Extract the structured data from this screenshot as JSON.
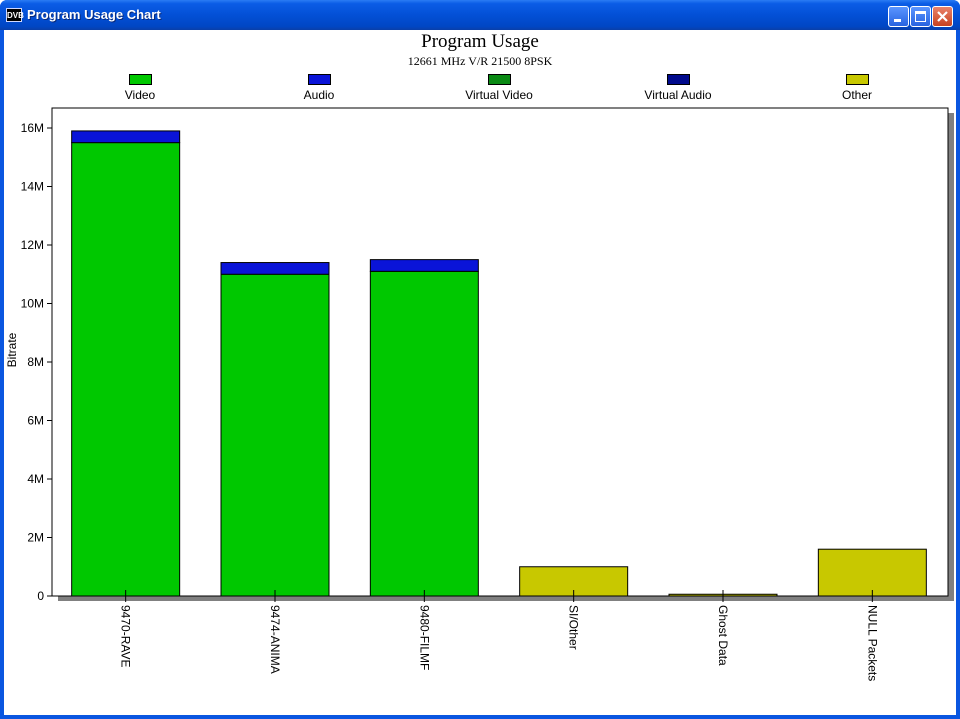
{
  "window": {
    "title": "Program Usage Chart",
    "icon_text": "DVB",
    "buttons": [
      "minimize",
      "maximize",
      "close"
    ]
  },
  "colors": {
    "video": "#00c800",
    "audio": "#0a14d8",
    "virtual_video": "#0a8a14",
    "virtual_audio": "#000a8c",
    "other": "#c8c800"
  },
  "chart_data": {
    "type": "bar",
    "stacked": true,
    "title": "Program Usage",
    "subtitle": "12661 MHz V/R 21500 8PSK",
    "xlabel": "",
    "ylabel": "Bitrate",
    "ylim": [
      0,
      16000000
    ],
    "yticks": [
      {
        "value": 0,
        "label": "0"
      },
      {
        "value": 2000000,
        "label": "2M"
      },
      {
        "value": 4000000,
        "label": "4M"
      },
      {
        "value": 6000000,
        "label": "6M"
      },
      {
        "value": 8000000,
        "label": "8M"
      },
      {
        "value": 10000000,
        "label": "10M"
      },
      {
        "value": 12000000,
        "label": "12M"
      },
      {
        "value": 14000000,
        "label": "14M"
      },
      {
        "value": 16000000,
        "label": "16M"
      }
    ],
    "legend_position": "top",
    "grid": false,
    "categories": [
      "9470-RAVE",
      "9474-ANIMA",
      "9480-FILMF",
      "SI/Other",
      "Ghost Data",
      "NULL Packets"
    ],
    "series": [
      {
        "name": "Video",
        "color_key": "video",
        "values": [
          15500000,
          11000000,
          11100000,
          0,
          0,
          0
        ]
      },
      {
        "name": "Audio",
        "color_key": "audio",
        "values": [
          400000,
          400000,
          400000,
          0,
          0,
          0
        ]
      },
      {
        "name": "Virtual Video",
        "color_key": "virtual_video",
        "values": [
          0,
          0,
          0,
          0,
          0,
          0
        ]
      },
      {
        "name": "Virtual Audio",
        "color_key": "virtual_audio",
        "values": [
          0,
          0,
          0,
          0,
          0,
          0
        ]
      },
      {
        "name": "Other",
        "color_key": "other",
        "values": [
          0,
          0,
          0,
          1000000,
          60000,
          1600000
        ]
      }
    ]
  }
}
